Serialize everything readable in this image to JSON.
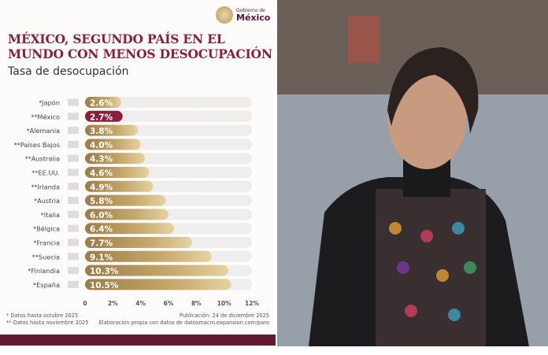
{
  "logo": {
    "line1": "Gobierno de",
    "line2": "México"
  },
  "title_line1": "MÉXICO, SEGUNDO PAÍS EN EL",
  "title_line2": "MUNDO CON MENOS DESOCUPACIÓN",
  "subtitle": "Tasa de desocupación",
  "chart_data": {
    "type": "bar",
    "orientation": "horizontal",
    "title": "Tasa de desocupación",
    "categories": [
      "*Japón",
      "**México",
      "*Alemania",
      "**Países Bajos",
      "**Australia",
      "**EE.UU.",
      "**Irlanda",
      "*Austria",
      "*Italia",
      "*Bélgica",
      "*Francia",
      "**Suecia",
      "*Finlandia",
      "*España"
    ],
    "values": [
      2.6,
      2.7,
      3.8,
      4.0,
      4.3,
      4.6,
      4.9,
      5.8,
      6.0,
      6.4,
      7.7,
      9.1,
      10.3,
      10.5
    ],
    "labels": [
      "2.6%",
      "2.7%",
      "3.8%",
      "4.0%",
      "4.3%",
      "4.6%",
      "4.9%",
      "5.8%",
      "6.0%",
      "6.4%",
      "7.7%",
      "9.1%",
      "10.3%",
      "10.5%"
    ],
    "highlight": "**México",
    "xticks": [
      "0",
      "2%",
      "4%",
      "6%",
      "8%",
      "10%",
      "12%"
    ],
    "xlim": [
      0,
      12
    ],
    "colors": {
      "bar": "#b89a5e",
      "highlight": "#8a1f3d",
      "track": "#eeeeee"
    }
  },
  "footnotes": {
    "left1": "* Datos hasta octubre 2025",
    "left2": "** Datos hasta noviembre 2025",
    "right1": "Publicación: 24 de diciembre 2025",
    "right2": "Elaboración propia con datos de datosmacro.expansion.com/paro"
  }
}
